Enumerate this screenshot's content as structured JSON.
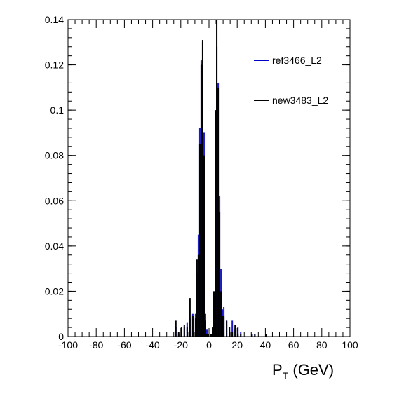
{
  "chart_data": {
    "type": "line",
    "title": "",
    "xlabel_main": "P",
    "xlabel_sub": "T",
    "xlabel_unit": " (GeV)",
    "ylabel": "",
    "xlim": [
      -100,
      100
    ],
    "ylim": [
      0,
      0.14
    ],
    "x_ticks": [
      -100,
      -80,
      -60,
      -40,
      -20,
      0,
      20,
      40,
      60,
      80,
      100
    ],
    "x_tick_labels": [
      "-100",
      "-80",
      "-60",
      "-40",
      "-20",
      "0",
      "20",
      "40",
      "60",
      "80",
      "100"
    ],
    "y_ticks": [
      0,
      0.02,
      0.04,
      0.06,
      0.08,
      0.1,
      0.12,
      0.14
    ],
    "y_tick_labels": [
      "0",
      "0.02",
      "0.04",
      "0.06",
      "0.08",
      "0.1",
      "0.12",
      "0.14"
    ],
    "grid": false,
    "legend_position": "top-right",
    "series": [
      {
        "name": "ref3466_L2",
        "color": "#0000cc",
        "points": [
          [
            -24,
            0.004
          ],
          [
            -22,
            0.001
          ],
          [
            -20,
            0.003
          ],
          [
            -18,
            0.004
          ],
          [
            -16,
            0.006
          ],
          [
            -14,
            0.008
          ],
          [
            -12,
            0.01
          ],
          [
            -10,
            0.01
          ],
          [
            -9,
            0.028
          ],
          [
            -8,
            0.045
          ],
          [
            -7,
            0.092
          ],
          [
            -6,
            0.122
          ],
          [
            -5,
            0.13
          ],
          [
            -4,
            0.09
          ],
          [
            -3,
            0.01
          ],
          [
            -2,
            0.003
          ],
          [
            -1,
            0.001
          ],
          [
            0,
            0.0
          ],
          [
            1,
            0.001
          ],
          [
            2,
            0.002
          ],
          [
            3,
            0.02
          ],
          [
            4,
            0.098
          ],
          [
            5,
            0.128
          ],
          [
            6,
            0.112
          ],
          [
            7,
            0.062
          ],
          [
            8,
            0.03
          ],
          [
            9,
            0.012
          ],
          [
            10,
            0.013
          ],
          [
            12,
            0.007
          ],
          [
            14,
            0.004
          ],
          [
            16,
            0.007
          ],
          [
            18,
            0.003
          ],
          [
            20,
            0.004
          ],
          [
            22,
            0.002
          ],
          [
            30,
            0.001
          ],
          [
            32,
            0.001
          ],
          [
            40,
            0.001
          ]
        ]
      },
      {
        "name": "new3483_L2",
        "color": "#000000",
        "points": [
          [
            -24,
            0.007
          ],
          [
            -22,
            0.002
          ],
          [
            -20,
            0.004
          ],
          [
            -18,
            0.005
          ],
          [
            -16,
            0.004
          ],
          [
            -14,
            0.017
          ],
          [
            -12,
            0.009
          ],
          [
            -10,
            0.008
          ],
          [
            -9,
            0.034
          ],
          [
            -8,
            0.036
          ],
          [
            -7,
            0.085
          ],
          [
            -6,
            0.12
          ],
          [
            -5,
            0.131
          ],
          [
            -4,
            0.08
          ],
          [
            -3,
            0.007
          ],
          [
            -2,
            0.001
          ],
          [
            -1,
            0.001
          ],
          [
            0,
            0.0
          ],
          [
            1,
            0.001
          ],
          [
            2,
            0.004
          ],
          [
            3,
            0.02
          ],
          [
            4,
            0.1
          ],
          [
            5,
            0.14
          ],
          [
            6,
            0.11
          ],
          [
            7,
            0.055
          ],
          [
            8,
            0.02
          ],
          [
            9,
            0.009
          ],
          [
            10,
            0.009
          ],
          [
            12,
            0.007
          ],
          [
            14,
            0.004
          ],
          [
            16,
            0.002
          ],
          [
            18,
            0.005
          ],
          [
            20,
            0.001
          ],
          [
            22,
            0.001
          ],
          [
            30,
            0.001
          ],
          [
            32,
            0.001
          ],
          [
            40,
            0.001
          ]
        ]
      }
    ]
  }
}
